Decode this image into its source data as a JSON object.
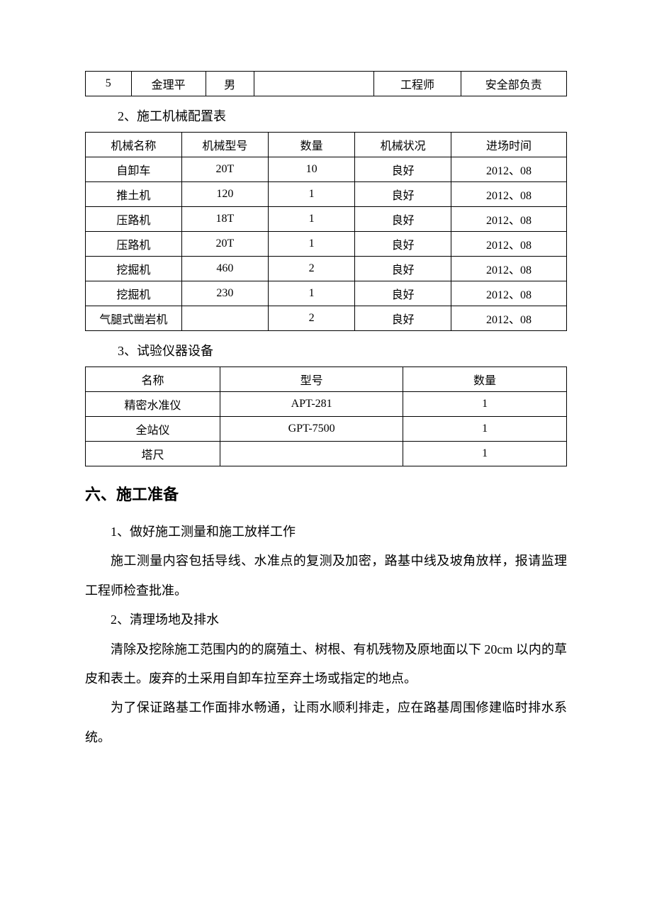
{
  "table1": {
    "row": {
      "c1": "5",
      "c2": "金理平",
      "c3": "男",
      "c4": "",
      "c5": "工程师",
      "c6": "安全部负责"
    }
  },
  "caption2": "2、施工机械配置表",
  "table2": {
    "columns": [
      "机械名称",
      "机械型号",
      "数量",
      "机械状况",
      "进场时间"
    ],
    "rows": [
      [
        "自卸车",
        "20T",
        "10",
        "良好",
        "2012、08"
      ],
      [
        "推土机",
        "120",
        "1",
        "良好",
        "2012、08"
      ],
      [
        "压路机",
        "18T",
        "1",
        "良好",
        "2012、08"
      ],
      [
        "压路机",
        "20T",
        "1",
        "良好",
        "2012、08"
      ],
      [
        "挖掘机",
        "460",
        "2",
        "良好",
        "2012、08"
      ],
      [
        "挖掘机",
        "230",
        "1",
        "良好",
        "2012、08"
      ],
      [
        "气腿式凿岩机",
        "",
        "2",
        "良好",
        "2012、08"
      ]
    ]
  },
  "caption3": "3、试验仪器设备",
  "table3": {
    "columns": [
      "名称",
      "型号",
      "数量"
    ],
    "rows": [
      [
        "精密水准仪",
        "APT-281",
        "1"
      ],
      [
        "全站仪",
        "GPT-7500",
        "1"
      ],
      [
        "塔尺",
        "",
        "1"
      ]
    ]
  },
  "heading6": "六、施工准备",
  "para1": "1、做好施工测量和施工放样工作",
  "para2": "施工测量内容包括导线、水准点的复测及加密，路基中线及坡角放样，报请监理工程师检查批准。",
  "para3": "2、清理场地及排水",
  "para4": "清除及挖除施工范围内的的腐殖土、树根、有机残物及原地面以下 20cm 以内的草皮和表土。废弃的土采用自卸车拉至弃土场或指定的地点。",
  "para5": "为了保证路基工作面排水畅通，让雨水顺利排走，应在路基周围修建临时排水系统。"
}
